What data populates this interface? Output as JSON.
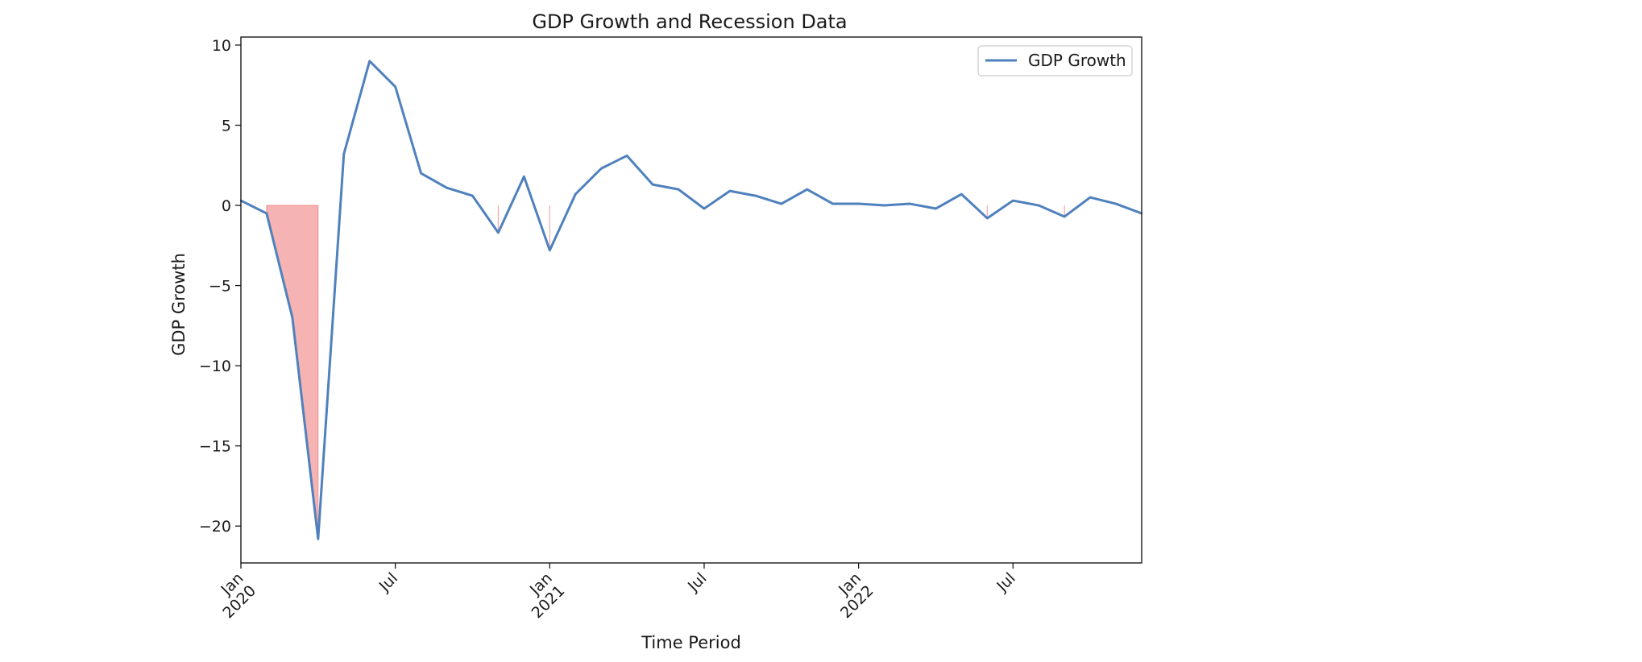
{
  "chart_data": {
    "type": "line",
    "title": "GDP Growth and Recession Data",
    "xlabel": "Time Period",
    "ylabel": "GDP Growth",
    "xlim": [
      "2020-01",
      "2022-12"
    ],
    "ylim": [
      -22.3,
      10.5
    ],
    "yticks": [
      10,
      5,
      0,
      -5,
      -10,
      -15,
      -20
    ],
    "ytick_labels": [
      "10",
      "5",
      "0",
      "−5",
      "−10",
      "−15",
      "−20"
    ],
    "xticks": [
      {
        "date": "2020-01",
        "lines": [
          "Jan",
          "2020"
        ]
      },
      {
        "date": "2020-07",
        "lines": [
          "Jul"
        ]
      },
      {
        "date": "2021-01",
        "lines": [
          "Jan",
          "2021"
        ]
      },
      {
        "date": "2021-07",
        "lines": [
          "Jul"
        ]
      },
      {
        "date": "2022-01",
        "lines": [
          "Jan",
          "2022"
        ]
      },
      {
        "date": "2022-07",
        "lines": [
          "Jul"
        ]
      }
    ],
    "legend": {
      "position": "top-right"
    },
    "grid": false,
    "series": [
      {
        "name": "GDP Growth",
        "color": "#4f81bd",
        "x": [
          "2020-01",
          "2020-02",
          "2020-03",
          "2020-04",
          "2020-05",
          "2020-06",
          "2020-07",
          "2020-08",
          "2020-09",
          "2020-10",
          "2020-11",
          "2020-12",
          "2021-01",
          "2021-02",
          "2021-03",
          "2021-04",
          "2021-05",
          "2021-06",
          "2021-07",
          "2021-08",
          "2021-09",
          "2021-10",
          "2021-11",
          "2021-12",
          "2022-01",
          "2022-02",
          "2022-03",
          "2022-04",
          "2022-05",
          "2022-06",
          "2022-07",
          "2022-08",
          "2022-09",
          "2022-10",
          "2022-11",
          "2022-12"
        ],
        "values": [
          0.3,
          -0.5,
          -7.0,
          -20.8,
          3.2,
          9.0,
          7.4,
          2.0,
          1.1,
          0.6,
          -1.7,
          1.8,
          -2.8,
          0.7,
          2.3,
          3.1,
          1.3,
          1.0,
          -0.2,
          0.9,
          0.6,
          0.1,
          1.0,
          0.1,
          0.1,
          0.0,
          0.1,
          -0.2,
          0.7,
          -0.8,
          0.3,
          0.0,
          -0.7,
          0.5,
          0.1,
          -0.5
        ]
      }
    ],
    "recession_shading": {
      "color": "#f08080",
      "note": "area filled between 0 and the series where the period is a recession",
      "periods": [
        {
          "start": "2020-02",
          "end": "2020-04"
        },
        {
          "start": "2020-11",
          "end": "2020-11"
        },
        {
          "start": "2021-01",
          "end": "2021-01"
        },
        {
          "start": "2022-06",
          "end": "2022-06"
        },
        {
          "start": "2022-09",
          "end": "2022-09"
        }
      ]
    }
  }
}
